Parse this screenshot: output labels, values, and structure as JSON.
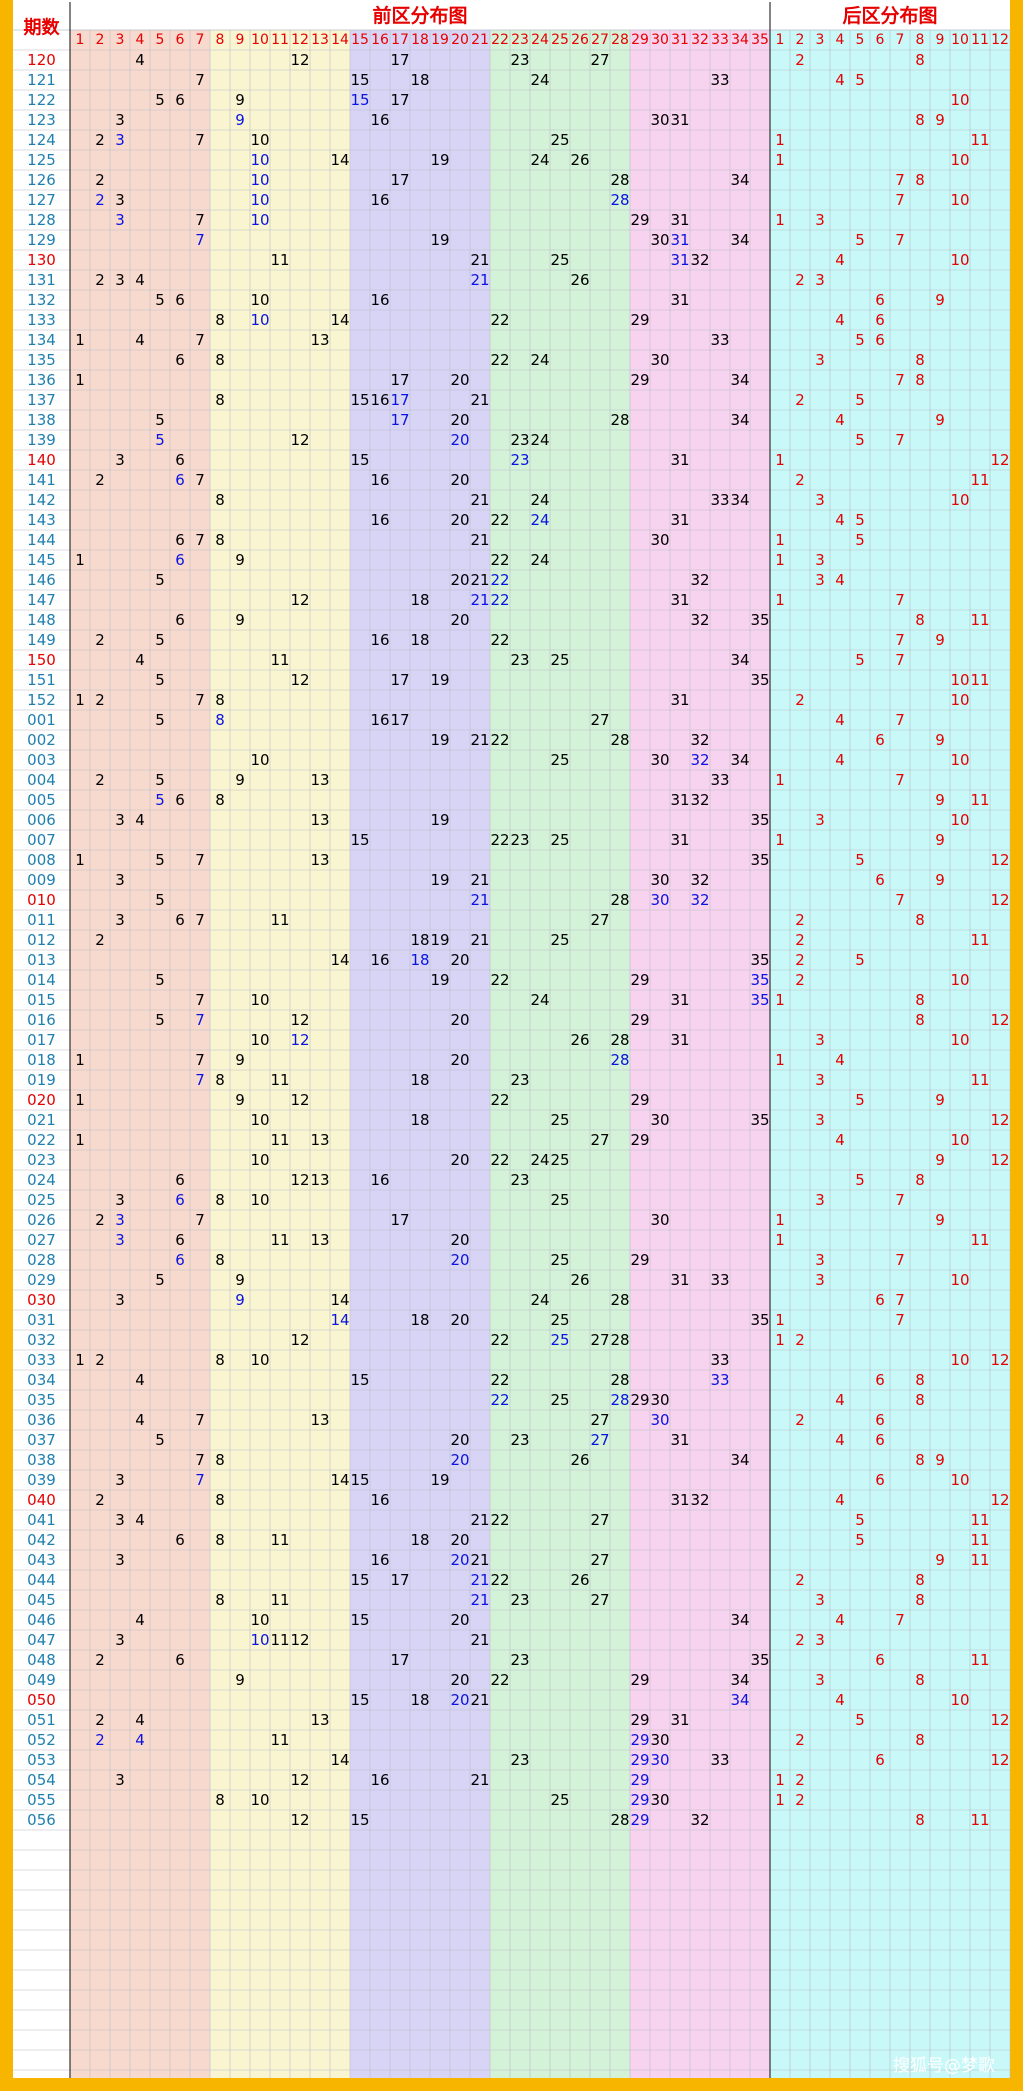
{
  "header": {
    "period_label": "期数",
    "front_title": "前区分布图",
    "back_title": "后区分布图"
  },
  "watermark": "搜狐号@梦歌",
  "front_columns": [
    "1",
    "2",
    "3",
    "4",
    "5",
    "6",
    "7",
    "8",
    "9",
    "10",
    "11",
    "12",
    "13",
    "14",
    "15",
    "16",
    "17",
    "18",
    "19",
    "20",
    "21",
    "22",
    "23",
    "24",
    "25",
    "26",
    "27",
    "28",
    "29",
    "30",
    "31",
    "32",
    "33",
    "34",
    "35"
  ],
  "back_columns": [
    "1",
    "2",
    "3",
    "4",
    "5",
    "6",
    "7",
    "8",
    "9",
    "10",
    "11",
    "12"
  ],
  "colors": {
    "border": "#f7b500",
    "header_text": "#e60000",
    "zone_front": [
      "#f7d9ce",
      "#f9f5d0",
      "#d7d4f6",
      "#d3f2d8",
      "#f7d3ef"
    ],
    "zone_back": "#c8f8f8",
    "grid": "#b9bec6",
    "num_normal": "#000000",
    "num_repeat": "#0a14e0",
    "num_back": "#e60000",
    "period_normal": "#1e7fb0",
    "period_special": "#e60000"
  },
  "chart_data": {
    "type": "table",
    "title": "前区分布图 / 后区分布图",
    "rows": [
      {
        "period": "120",
        "front": [
          4,
          12,
          17,
          23,
          27
        ],
        "back": [
          2,
          8
        ]
      },
      {
        "period": "121",
        "front": [
          7,
          15,
          18,
          24,
          33
        ],
        "back": [
          4,
          5
        ]
      },
      {
        "period": "122",
        "front": [
          5,
          6,
          9,
          15,
          17
        ],
        "back": [
          10
        ]
      },
      {
        "period": "123",
        "front": [
          3,
          9,
          16,
          30,
          31
        ],
        "back": [
          8,
          9
        ]
      },
      {
        "period": "124",
        "front": [
          2,
          3,
          7,
          10,
          25
        ],
        "back": [
          1,
          11
        ]
      },
      {
        "period": "125",
        "front": [
          10,
          14,
          19,
          24,
          26
        ],
        "back": [
          1,
          10
        ]
      },
      {
        "period": "126",
        "front": [
          2,
          10,
          17,
          28,
          34
        ],
        "back": [
          7,
          8
        ]
      },
      {
        "period": "127",
        "front": [
          2,
          3,
          10,
          16,
          28
        ],
        "back": [
          7,
          10
        ]
      },
      {
        "period": "128",
        "front": [
          3,
          7,
          10,
          29,
          31
        ],
        "back": [
          1,
          3
        ]
      },
      {
        "period": "129",
        "front": [
          7,
          19,
          30,
          31,
          34
        ],
        "back": [
          5,
          7
        ]
      },
      {
        "period": "130",
        "front": [
          11,
          21,
          25,
          31,
          32
        ],
        "back": [
          4,
          10
        ]
      },
      {
        "period": "131",
        "front": [
          2,
          3,
          4,
          21,
          26
        ],
        "back": [
          2,
          3
        ]
      },
      {
        "period": "132",
        "front": [
          5,
          6,
          10,
          16,
          31
        ],
        "back": [
          6,
          9
        ]
      },
      {
        "period": "133",
        "front": [
          8,
          10,
          14,
          22,
          29
        ],
        "back": [
          4,
          6
        ]
      },
      {
        "period": "134",
        "front": [
          1,
          4,
          7,
          13,
          33
        ],
        "back": [
          5,
          6
        ]
      },
      {
        "period": "135",
        "front": [
          6,
          8,
          22,
          24,
          30
        ],
        "back": [
          3,
          8
        ]
      },
      {
        "period": "136",
        "front": [
          1,
          17,
          20,
          29,
          34
        ],
        "back": [
          7,
          8
        ]
      },
      {
        "period": "137",
        "front": [
          8,
          15,
          16,
          17,
          21
        ],
        "back": [
          2,
          5
        ]
      },
      {
        "period": "138",
        "front": [
          5,
          17,
          20,
          28,
          34
        ],
        "back": [
          4,
          9
        ]
      },
      {
        "period": "139",
        "front": [
          5,
          12,
          20,
          23,
          24
        ],
        "back": [
          5,
          7
        ]
      },
      {
        "period": "140",
        "front": [
          3,
          6,
          15,
          23,
          31
        ],
        "back": [
          1,
          12
        ]
      },
      {
        "period": "141",
        "front": [
          2,
          6,
          7,
          16,
          20
        ],
        "back": [
          2,
          11
        ]
      },
      {
        "period": "142",
        "front": [
          8,
          21,
          24,
          33,
          34
        ],
        "back": [
          3,
          10
        ]
      },
      {
        "period": "143",
        "front": [
          16,
          20,
          22,
          24,
          31
        ],
        "back": [
          4,
          5
        ]
      },
      {
        "period": "144",
        "front": [
          6,
          7,
          8,
          21,
          30
        ],
        "back": [
          1,
          5
        ]
      },
      {
        "period": "145",
        "front": [
          1,
          6,
          9,
          22,
          24
        ],
        "back": [
          1,
          3
        ]
      },
      {
        "period": "146",
        "front": [
          5,
          20,
          21,
          22,
          32
        ],
        "back": [
          3,
          4
        ]
      },
      {
        "period": "147",
        "front": [
          12,
          18,
          21,
          22,
          31
        ],
        "back": [
          1,
          7
        ]
      },
      {
        "period": "148",
        "front": [
          6,
          9,
          20,
          32,
          35
        ],
        "back": [
          8,
          11
        ]
      },
      {
        "period": "149",
        "front": [
          2,
          5,
          16,
          18,
          22
        ],
        "back": [
          7,
          9
        ]
      },
      {
        "period": "150",
        "front": [
          4,
          11,
          23,
          25,
          34
        ],
        "back": [
          5,
          7
        ]
      },
      {
        "period": "151",
        "front": [
          5,
          12,
          17,
          19,
          35
        ],
        "back": [
          10,
          11
        ]
      },
      {
        "period": "152",
        "front": [
          1,
          2,
          7,
          8,
          31
        ],
        "back": [
          2,
          10
        ]
      },
      {
        "period": "001",
        "front": [
          5,
          8,
          16,
          17,
          27
        ],
        "back": [
          4,
          7
        ]
      },
      {
        "period": "002",
        "front": [
          19,
          21,
          22,
          28,
          32
        ],
        "back": [
          6,
          9
        ]
      },
      {
        "period": "003",
        "front": [
          10,
          25,
          30,
          32,
          34
        ],
        "back": [
          4,
          10
        ]
      },
      {
        "period": "004",
        "front": [
          2,
          5,
          9,
          13,
          33
        ],
        "back": [
          1,
          7
        ]
      },
      {
        "period": "005",
        "front": [
          5,
          6,
          8,
          31,
          32
        ],
        "back": [
          9,
          11
        ]
      },
      {
        "period": "006",
        "front": [
          3,
          4,
          13,
          19,
          35
        ],
        "back": [
          3,
          10
        ]
      },
      {
        "period": "007",
        "front": [
          15,
          22,
          23,
          25,
          31
        ],
        "back": [
          1,
          9
        ]
      },
      {
        "period": "008",
        "front": [
          1,
          5,
          7,
          13,
          35
        ],
        "back": [
          5,
          12
        ]
      },
      {
        "period": "009",
        "front": [
          3,
          19,
          21,
          30,
          32
        ],
        "back": [
          6,
          9
        ]
      },
      {
        "period": "010",
        "front": [
          5,
          21,
          28,
          30,
          32
        ],
        "back": [
          7,
          12
        ]
      },
      {
        "period": "011",
        "front": [
          3,
          6,
          7,
          11,
          27
        ],
        "back": [
          2,
          8
        ]
      },
      {
        "period": "012",
        "front": [
          2,
          18,
          19,
          21,
          25
        ],
        "back": [
          2,
          11
        ]
      },
      {
        "period": "013",
        "front": [
          14,
          16,
          18,
          20,
          35
        ],
        "back": [
          2,
          5
        ]
      },
      {
        "period": "014",
        "front": [
          5,
          19,
          22,
          29,
          35
        ],
        "back": [
          2,
          10
        ]
      },
      {
        "period": "015",
        "front": [
          7,
          10,
          24,
          31,
          35
        ],
        "back": [
          1,
          8
        ]
      },
      {
        "period": "016",
        "front": [
          5,
          7,
          12,
          20,
          29
        ],
        "back": [
          8,
          12
        ]
      },
      {
        "period": "017",
        "front": [
          10,
          12,
          26,
          28,
          31
        ],
        "back": [
          3,
          10
        ]
      },
      {
        "period": "018",
        "front": [
          1,
          7,
          9,
          20,
          28
        ],
        "back": [
          1,
          4
        ]
      },
      {
        "period": "019",
        "front": [
          7,
          8,
          11,
          18,
          23
        ],
        "back": [
          3,
          11
        ]
      },
      {
        "period": "020",
        "front": [
          1,
          9,
          12,
          22,
          29
        ],
        "back": [
          5,
          9
        ]
      },
      {
        "period": "021",
        "front": [
          10,
          18,
          25,
          30,
          35
        ],
        "back": [
          3,
          12
        ]
      },
      {
        "period": "022",
        "front": [
          1,
          11,
          13,
          27,
          29
        ],
        "back": [
          4,
          10
        ]
      },
      {
        "period": "023",
        "front": [
          10,
          20,
          22,
          24,
          25
        ],
        "back": [
          9,
          12
        ]
      },
      {
        "period": "024",
        "front": [
          6,
          12,
          13,
          16,
          23
        ],
        "back": [
          5,
          8
        ]
      },
      {
        "period": "025",
        "front": [
          3,
          6,
          8,
          10,
          25
        ],
        "back": [
          3,
          7
        ]
      },
      {
        "period": "026",
        "front": [
          2,
          3,
          7,
          17,
          30
        ],
        "back": [
          1,
          9
        ]
      },
      {
        "period": "027",
        "front": [
          3,
          6,
          11,
          13,
          20
        ],
        "back": [
          1,
          11
        ]
      },
      {
        "period": "028",
        "front": [
          6,
          8,
          20,
          25,
          29
        ],
        "back": [
          3,
          7
        ]
      },
      {
        "period": "029",
        "front": [
          5,
          9,
          26,
          31,
          33
        ],
        "back": [
          3,
          10
        ]
      },
      {
        "period": "030",
        "front": [
          3,
          9,
          14,
          24,
          28
        ],
        "back": [
          6,
          7
        ]
      },
      {
        "period": "031",
        "front": [
          14,
          18,
          20,
          25,
          35
        ],
        "back": [
          1,
          7
        ]
      },
      {
        "period": "032",
        "front": [
          12,
          22,
          25,
          27,
          28
        ],
        "back": [
          1,
          2
        ]
      },
      {
        "period": "033",
        "front": [
          1,
          2,
          8,
          10,
          33
        ],
        "back": [
          10,
          12
        ]
      },
      {
        "period": "034",
        "front": [
          4,
          15,
          22,
          28,
          33
        ],
        "back": [
          6,
          8
        ]
      },
      {
        "period": "035",
        "front": [
          22,
          25,
          28,
          29,
          30
        ],
        "back": [
          4,
          8
        ]
      },
      {
        "period": "036",
        "front": [
          4,
          7,
          13,
          27,
          30
        ],
        "back": [
          2,
          6
        ]
      },
      {
        "period": "037",
        "front": [
          5,
          20,
          23,
          27,
          31
        ],
        "back": [
          4,
          6
        ]
      },
      {
        "period": "038",
        "front": [
          7,
          8,
          20,
          26,
          34
        ],
        "back": [
          8,
          9
        ]
      },
      {
        "period": "039",
        "front": [
          3,
          7,
          14,
          15,
          19
        ],
        "back": [
          6,
          10
        ]
      },
      {
        "period": "040",
        "front": [
          2,
          8,
          16,
          31,
          32
        ],
        "back": [
          4,
          12
        ]
      },
      {
        "period": "041",
        "front": [
          3,
          4,
          21,
          22,
          27
        ],
        "back": [
          5,
          11
        ]
      },
      {
        "period": "042",
        "front": [
          6,
          8,
          11,
          18,
          20
        ],
        "back": [
          5,
          11
        ]
      },
      {
        "period": "043",
        "front": [
          3,
          16,
          20,
          21,
          27
        ],
        "back": [
          9,
          11
        ]
      },
      {
        "period": "044",
        "front": [
          15,
          17,
          21,
          22,
          26
        ],
        "back": [
          2,
          8
        ]
      },
      {
        "period": "045",
        "front": [
          8,
          11,
          21,
          23,
          27
        ],
        "back": [
          3,
          8
        ]
      },
      {
        "period": "046",
        "front": [
          4,
          10,
          15,
          20,
          34
        ],
        "back": [
          4,
          7
        ]
      },
      {
        "period": "047",
        "front": [
          3,
          10,
          11,
          12,
          21
        ],
        "back": [
          2,
          3
        ]
      },
      {
        "period": "048",
        "front": [
          2,
          6,
          17,
          23,
          35
        ],
        "back": [
          6,
          11
        ]
      },
      {
        "period": "049",
        "front": [
          9,
          20,
          22,
          29,
          34
        ],
        "back": [
          3,
          8
        ]
      },
      {
        "period": "050",
        "front": [
          15,
          18,
          20,
          21,
          34
        ],
        "back": [
          4,
          10
        ]
      },
      {
        "period": "051",
        "front": [
          2,
          4,
          13,
          29,
          31
        ],
        "back": [
          5,
          12
        ]
      },
      {
        "period": "052",
        "front": [
          2,
          4,
          11,
          29,
          30
        ],
        "back": [
          2,
          8
        ]
      },
      {
        "period": "053",
        "front": [
          14,
          23,
          29,
          30,
          33
        ],
        "back": [
          6,
          12
        ]
      },
      {
        "period": "054",
        "front": [
          3,
          12,
          16,
          21,
          29
        ],
        "back": [
          1,
          2
        ]
      },
      {
        "period": "055",
        "front": [
          8,
          10,
          25,
          29,
          30
        ],
        "back": [
          1,
          2
        ]
      },
      {
        "period": "056",
        "front": [
          12,
          15,
          28,
          29,
          32
        ],
        "back": [
          8,
          11
        ]
      }
    ]
  }
}
